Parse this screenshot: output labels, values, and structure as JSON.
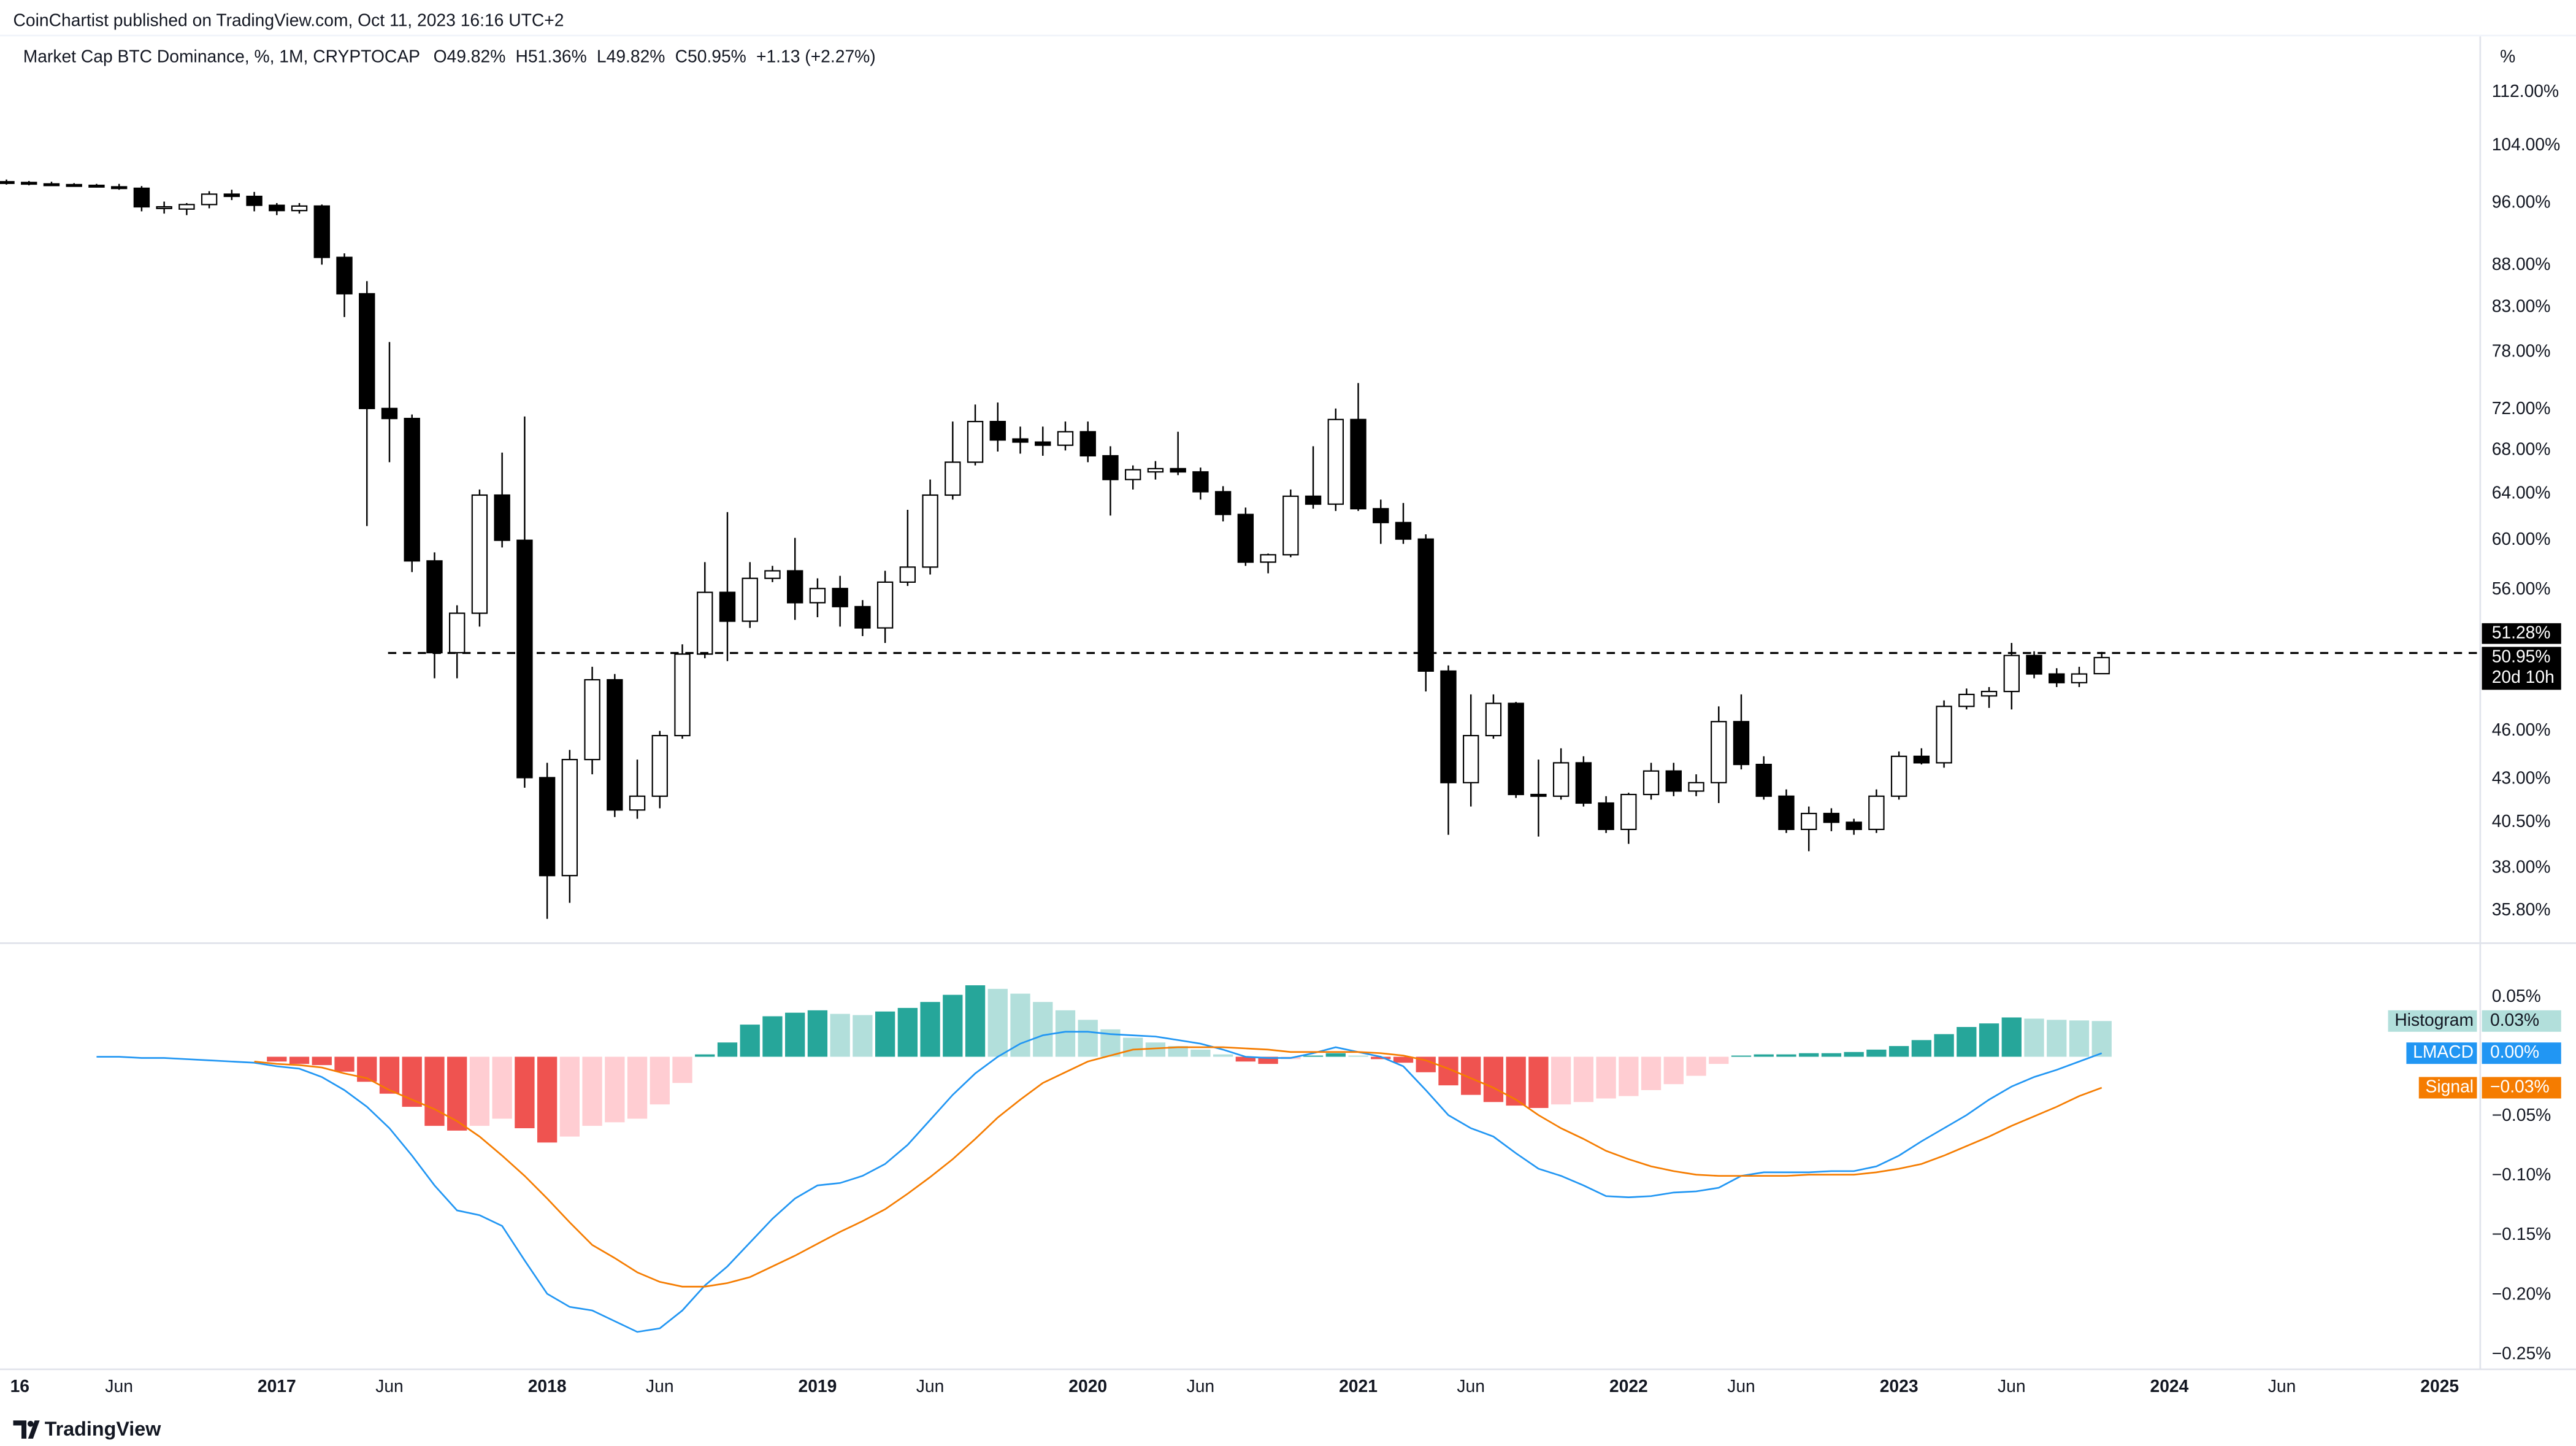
{
  "header": {
    "publisher": "CoinChartist published on TradingView.com, Oct 11, 2023 16:16 UTC+2"
  },
  "footer": {
    "brand": "TradingView"
  },
  "chart_data": [
    {
      "type": "candlestick",
      "title": "Market Cap BTC Dominance, %, 1M, CRYPTOCAP",
      "ohlc": [
        "O49.82%",
        "H51.36%",
        "L49.82%",
        "C50.95%",
        "+1.13 (+2.27%)"
      ],
      "y_unit": "%",
      "log": true,
      "grid": false,
      "up_color": "#ffffff",
      "down_color": "#000000",
      "wick_color": "#000000",
      "xlim": [
        0.3,
        109.8
      ],
      "ylim": [
        34.3,
        127.4
      ],
      "xticks": [
        {
          "value": 0,
          "label": "16"
        },
        {
          "value": 5,
          "label": "Jun"
        },
        {
          "value": 12,
          "label": "2017"
        },
        {
          "value": 17,
          "label": "Jun"
        },
        {
          "value": 24,
          "label": "2018"
        },
        {
          "value": 29,
          "label": "Jun"
        },
        {
          "value": 36,
          "label": "2019"
        },
        {
          "value": 41,
          "label": "Jun"
        },
        {
          "value": 48,
          "label": "2020"
        },
        {
          "value": 53,
          "label": "Jun"
        },
        {
          "value": 60,
          "label": "2021"
        },
        {
          "value": 65,
          "label": "Jun"
        },
        {
          "value": 72,
          "label": "2022"
        },
        {
          "value": 77,
          "label": "Jun"
        },
        {
          "value": 84,
          "label": "2023"
        },
        {
          "value": 89,
          "label": "Jun"
        },
        {
          "value": 96,
          "label": "2024"
        },
        {
          "value": 101,
          "label": "Jun"
        },
        {
          "value": 108,
          "label": "2025"
        }
      ],
      "yticks": [
        {
          "value": 112,
          "label": "112.00%"
        },
        {
          "value": 104,
          "label": "104.00%"
        },
        {
          "value": 96,
          "label": "96.00%"
        },
        {
          "value": 88,
          "label": "88.00%"
        },
        {
          "value": 83,
          "label": "83.00%"
        },
        {
          "value": 78,
          "label": "78.00%"
        },
        {
          "value": 72,
          "label": "72.00%"
        },
        {
          "value": 68,
          "label": "68.00%"
        },
        {
          "value": 64,
          "label": "64.00%"
        },
        {
          "value": 60,
          "label": "60.00%"
        },
        {
          "value": 56,
          "label": "56.00%"
        },
        {
          "value": 46,
          "label": "46.00%"
        },
        {
          "value": 43,
          "label": "43.00%"
        },
        {
          "value": 40.5,
          "label": "40.50%"
        },
        {
          "value": 38,
          "label": "38.00%"
        },
        {
          "value": 35.8,
          "label": "35.80%"
        }
      ],
      "hline": {
        "value": 51.28,
        "label": "51.28%"
      },
      "last_price": {
        "value": 50.95,
        "label": "50.95%",
        "countdown": "20d 10h"
      },
      "x": [
        0,
        1,
        2,
        3,
        4,
        5,
        6,
        7,
        8,
        9,
        10,
        11,
        12,
        13,
        14,
        15,
        16,
        17,
        18,
        19,
        20,
        21,
        22,
        23,
        24,
        25,
        26,
        27,
        28,
        29,
        30,
        31,
        32,
        33,
        34,
        35,
        36,
        37,
        38,
        39,
        40,
        41,
        42,
        43,
        44,
        45,
        46,
        47,
        48,
        49,
        50,
        51,
        52,
        53,
        54,
        55,
        56,
        57,
        58,
        59,
        60,
        61,
        62,
        63,
        64,
        65,
        66,
        67,
        68,
        69,
        70,
        71,
        72,
        73,
        74,
        75,
        76,
        77,
        78,
        79,
        80,
        81,
        82,
        83,
        84,
        85,
        86,
        87,
        88,
        89,
        90,
        91,
        92,
        93
      ],
      "open": [
        98.9,
        98.8,
        98.6,
        98.5,
        98.4,
        98.2,
        98.0,
        95.5,
        95.2,
        95.8,
        97.2,
        96.9,
        95.7,
        95.0,
        95.6,
        89.0,
        84.6,
        72.1,
        71.1,
        58.3,
        51.3,
        54.2,
        63.9,
        60.0,
        43.1,
        37.6,
        44.2,
        49.4,
        41.2,
        42.0,
        45.7,
        51.2,
        55.8,
        53.6,
        56.9,
        57.5,
        55.0,
        56.1,
        54.7,
        53.1,
        56.6,
        57.8,
        63.9,
        66.9,
        70.8,
        69.1,
        68.8,
        68.5,
        69.8,
        67.5,
        65.3,
        66.0,
        66.3,
        66.0,
        64.2,
        62.2,
        58.2,
        58.8,
        63.8,
        63.1,
        71.0,
        62.7,
        61.5,
        60.1,
        50.0,
        42.8,
        45.7,
        47.8,
        42.1,
        42.0,
        44.0,
        41.6,
        40.1,
        42.1,
        43.5,
        42.3,
        42.8,
        46.6,
        43.9,
        42.0,
        40.1,
        41.0,
        40.5,
        40.1,
        42.0,
        44.4,
        44.0,
        47.6,
        48.3,
        48.6,
        51.1,
        49.8,
        49.2,
        49.82
      ],
      "high": [
        99.2,
        99.0,
        98.9,
        98.7,
        98.6,
        98.6,
        98.3,
        96.2,
        96.0,
        97.6,
        97.8,
        97.5,
        96.0,
        96.0,
        95.8,
        89.5,
        86.1,
        79.1,
        71.5,
        59.0,
        54.8,
        64.4,
        67.8,
        71.3,
        44.0,
        44.8,
        50.3,
        49.8,
        44.2,
        46.0,
        51.9,
        58.2,
        62.4,
        58.2,
        57.9,
        60.2,
        56.9,
        57.1,
        55.2,
        57.5,
        62.6,
        65.3,
        70.8,
        72.5,
        72.7,
        70.3,
        70.3,
        70.8,
        70.8,
        68.4,
        66.6,
        67.0,
        69.8,
        66.4,
        64.7,
        62.8,
        58.9,
        64.4,
        68.4,
        72.1,
        74.7,
        63.5,
        63.2,
        60.5,
        50.4,
        48.4,
        48.4,
        47.9,
        44.2,
        44.9,
        44.4,
        42.0,
        42.2,
        44.0,
        44.0,
        43.3,
        47.6,
        48.4,
        44.4,
        42.4,
        41.4,
        41.3,
        40.7,
        42.4,
        44.7,
        44.9,
        48.0,
        48.8,
        48.9,
        52.0,
        51.4,
        50.2,
        50.3,
        51.36
      ],
      "low": [
        98.5,
        98.4,
        98.3,
        98.2,
        98.1,
        97.8,
        94.9,
        94.6,
        94.4,
        95.3,
        96.4,
        94.9,
        94.4,
        94.6,
        88.1,
        81.9,
        61.2,
        66.9,
        57.4,
        49.5,
        49.5,
        53.2,
        59.4,
        42.5,
        35.4,
        36.2,
        43.3,
        40.8,
        40.7,
        41.3,
        45.5,
        50.9,
        50.7,
        53.1,
        56.6,
        53.7,
        53.9,
        53.2,
        52.5,
        52.0,
        56.3,
        57.2,
        63.5,
        66.6,
        67.9,
        67.7,
        67.5,
        68.0,
        66.9,
        62.1,
        64.4,
        65.3,
        65.7,
        63.5,
        61.6,
        57.9,
        57.3,
        58.6,
        62.7,
        62.5,
        62.5,
        59.7,
        59.7,
        48.6,
        39.8,
        41.4,
        45.5,
        41.9,
        39.7,
        41.8,
        41.4,
        39.9,
        39.3,
        41.8,
        42.0,
        42.0,
        41.6,
        43.6,
        41.8,
        39.9,
        38.9,
        40.0,
        39.8,
        39.9,
        41.8,
        43.9,
        43.7,
        47.4,
        47.5,
        47.4,
        49.5,
        48.9,
        48.9,
        49.82
      ],
      "close": [
        98.8,
        98.6,
        98.5,
        98.4,
        98.2,
        98.0,
        95.5,
        95.5,
        95.8,
        97.2,
        96.9,
        95.7,
        95.0,
        95.6,
        89.0,
        84.6,
        72.1,
        71.1,
        58.3,
        51.3,
        54.2,
        63.9,
        60.0,
        43.1,
        37.6,
        44.2,
        49.4,
        41.2,
        42.0,
        45.7,
        51.2,
        55.8,
        53.6,
        56.9,
        57.5,
        55.0,
        56.1,
        54.7,
        53.1,
        56.6,
        57.8,
        63.9,
        66.9,
        70.8,
        69.0,
        68.8,
        68.5,
        69.8,
        67.5,
        65.3,
        66.2,
        66.3,
        66.0,
        64.2,
        62.2,
        58.2,
        58.8,
        63.8,
        63.1,
        71.0,
        62.7,
        61.5,
        60.1,
        50.0,
        42.8,
        45.7,
        47.8,
        42.1,
        42.0,
        44.0,
        41.6,
        40.1,
        42.1,
        43.5,
        42.3,
        42.8,
        46.6,
        43.9,
        42.0,
        40.1,
        41.0,
        40.5,
        40.1,
        42.0,
        44.4,
        44.0,
        47.6,
        48.4,
        48.6,
        51.1,
        49.8,
        49.2,
        49.8,
        50.95
      ]
    },
    {
      "type": "macd",
      "grid": false,
      "ylim": [
        -0.261,
        0.094
      ],
      "yticks": [
        {
          "value": 0.05,
          "label": "0.05%"
        },
        {
          "value": -0.05,
          "label": "−0.05%"
        },
        {
          "value": -0.1,
          "label": "−0.10%"
        },
        {
          "value": -0.15,
          "label": "−0.15%"
        },
        {
          "value": -0.2,
          "label": "−0.20%"
        },
        {
          "value": -0.25,
          "label": "−0.25%"
        }
      ],
      "series": [
        {
          "name": "Histogram",
          "style": "columns",
          "color": "#26a69a",
          "color_fading": "#b2dfdb",
          "color_down": "#ef5350",
          "color_down_fading": "#ffcdd2",
          "current_label": "0.03%",
          "values": [
            null,
            null,
            null,
            null,
            null,
            null,
            null,
            null,
            null,
            null,
            null,
            null,
            -0.004,
            -0.006,
            -0.007,
            -0.0125,
            -0.021,
            -0.031,
            -0.042,
            -0.058,
            -0.062,
            -0.058,
            -0.052,
            -0.06,
            -0.072,
            -0.067,
            -0.058,
            -0.055,
            -0.052,
            -0.04,
            -0.022,
            0.002,
            0.012,
            0.027,
            0.034,
            0.037,
            0.039,
            0.036,
            0.035,
            0.038,
            0.041,
            0.046,
            0.052,
            0.06,
            0.057,
            0.053,
            0.046,
            0.039,
            0.031,
            0.023,
            0.016,
            0.012,
            0.009,
            0.006,
            0.002,
            -0.004,
            -0.006,
            -0.002,
            0.001,
            0.003,
            0.001,
            -0.002,
            -0.005,
            -0.013,
            -0.024,
            -0.032,
            -0.038,
            -0.041,
            -0.043,
            -0.04,
            -0.038,
            -0.035,
            -0.033,
            -0.028,
            -0.023,
            -0.016,
            -0.006,
            0.001,
            0.002,
            0.002,
            0.003,
            0.003,
            0.004,
            0.006,
            0.009,
            0.014,
            0.019,
            0.025,
            0.028,
            0.033,
            0.032,
            0.031,
            0.0305,
            0.03
          ]
        },
        {
          "name": "LMACD",
          "style": "line",
          "color": "#2196f3",
          "current_label": "0.00%",
          "values": [
            null,
            null,
            null,
            null,
            0,
            0,
            -0.001,
            -0.001,
            -0.002,
            -0.003,
            -0.004,
            -0.005,
            -0.008,
            -0.01,
            -0.017,
            -0.028,
            -0.042,
            -0.06,
            -0.083,
            -0.108,
            -0.129,
            -0.133,
            -0.142,
            -0.171,
            -0.199,
            -0.21,
            -0.213,
            -0.222,
            -0.231,
            -0.228,
            -0.213,
            -0.192,
            -0.176,
            -0.156,
            -0.136,
            -0.119,
            -0.108,
            -0.106,
            -0.1,
            -0.09,
            -0.074,
            -0.053,
            -0.032,
            -0.014,
            0,
            0.011,
            0.018,
            0.021,
            0.021,
            0.019,
            0.018,
            0.017,
            0.014,
            0.011,
            0.006,
            0,
            -0.001,
            -0.001,
            0.003,
            0.008,
            0.004,
            0,
            -0.008,
            -0.028,
            -0.049,
            -0.06,
            -0.067,
            -0.081,
            -0.094,
            -0.1,
            -0.108,
            -0.117,
            -0.118,
            -0.117,
            -0.114,
            -0.113,
            -0.11,
            -0.1,
            -0.097,
            -0.097,
            -0.097,
            -0.096,
            -0.096,
            -0.092,
            -0.083,
            -0.071,
            -0.06,
            -0.049,
            -0.036,
            -0.025,
            -0.017,
            -0.011,
            -0.004,
            0.003
          ]
        },
        {
          "name": "Signal",
          "style": "line",
          "color": "#f57c00",
          "current_label": "−0.03%",
          "values": [
            null,
            null,
            null,
            null,
            null,
            null,
            null,
            null,
            null,
            null,
            null,
            -0.004,
            -0.006,
            -0.007,
            -0.009,
            -0.014,
            -0.018,
            -0.028,
            -0.036,
            -0.044,
            -0.054,
            -0.067,
            -0.083,
            -0.1,
            -0.119,
            -0.139,
            -0.158,
            -0.169,
            -0.181,
            -0.189,
            -0.193,
            -0.193,
            -0.19,
            -0.185,
            -0.176,
            -0.167,
            -0.157,
            -0.147,
            -0.138,
            -0.128,
            -0.115,
            -0.101,
            -0.086,
            -0.069,
            -0.051,
            -0.036,
            -0.022,
            -0.013,
            -0.004,
            0.001,
            0.006,
            0.007,
            0.008,
            0.008,
            0.008,
            0.007,
            0.006,
            0.004,
            0.004,
            0.004,
            0.004,
            0.003,
            0.001,
            -0.003,
            -0.01,
            -0.018,
            -0.026,
            -0.036,
            -0.049,
            -0.06,
            -0.069,
            -0.079,
            -0.086,
            -0.092,
            -0.096,
            -0.099,
            -0.1,
            -0.1,
            -0.1,
            -0.1,
            -0.099,
            -0.099,
            -0.099,
            -0.097,
            -0.094,
            -0.09,
            -0.083,
            -0.075,
            -0.067,
            -0.058,
            -0.05,
            -0.042,
            -0.033,
            -0.026
          ]
        }
      ]
    }
  ]
}
